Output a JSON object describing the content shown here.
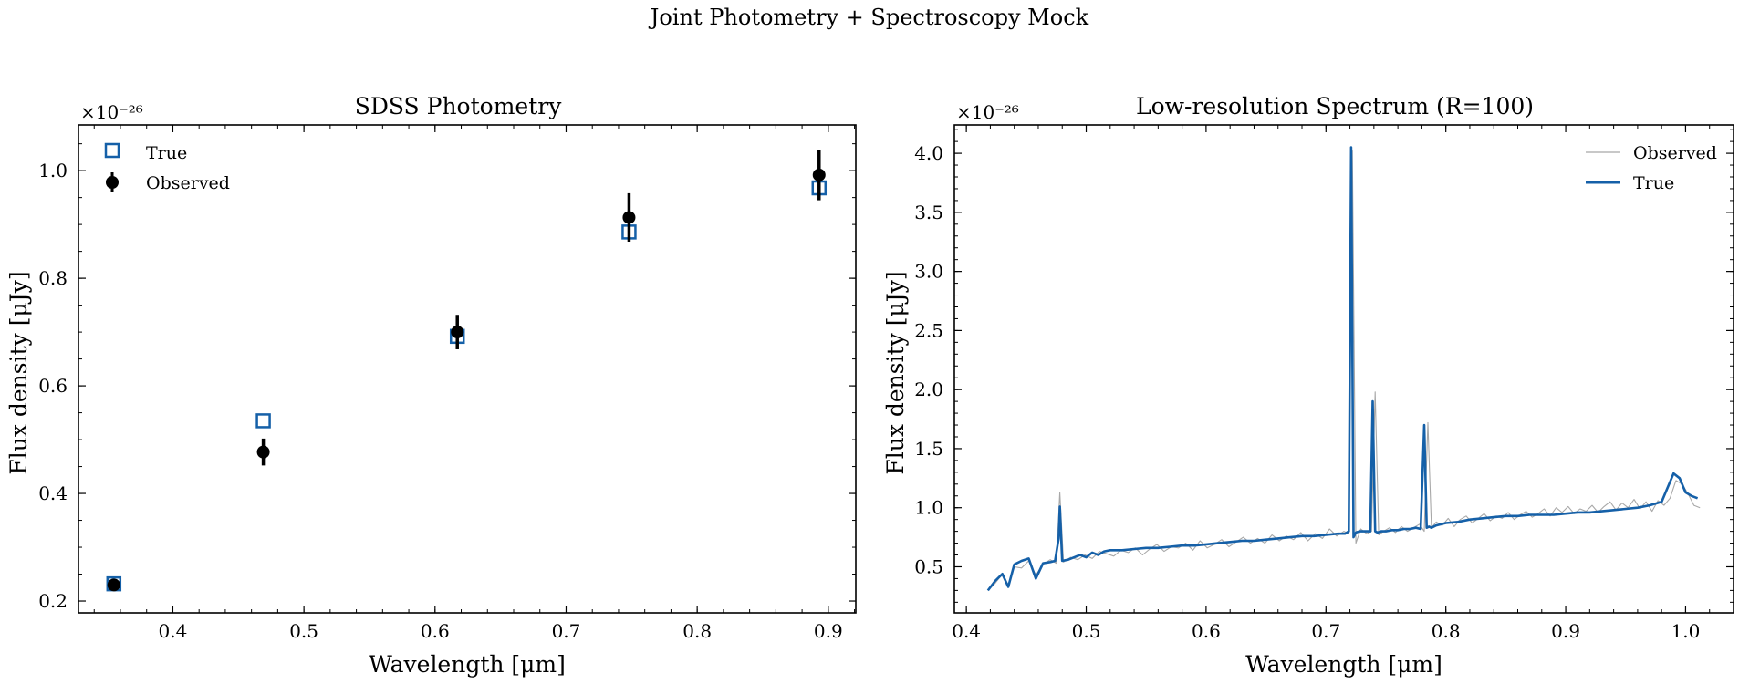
{
  "figure": {
    "suptitle": "Joint Photometry + Spectroscopy Mock"
  },
  "colors": {
    "true": "#1560a8",
    "observed_phot": "#000000",
    "observed_spec": "#a8a8a8"
  },
  "chart_data": [
    {
      "type": "scatter",
      "title": "SDSS Photometry",
      "xlabel": "Wavelength [μm]",
      "ylabel": "Flux density [μJy]",
      "offset_text": "×10⁻²⁶",
      "xlim": [
        0.328,
        0.921
      ],
      "ylim": [
        0.178,
        1.085
      ],
      "xticks": [
        "0.4",
        "0.5",
        "0.6",
        "0.7",
        "0.8",
        "0.9"
      ],
      "yticks": [
        "0.2",
        "0.4",
        "0.6",
        "0.8",
        "1.0"
      ],
      "legend_position": "upper-left",
      "series": [
        {
          "name": "True",
          "marker": "open-square",
          "x": [
            0.355,
            0.469,
            0.617,
            0.748,
            0.893
          ],
          "y": [
            0.232,
            0.535,
            0.692,
            0.886,
            0.968
          ]
        },
        {
          "name": "Observed",
          "marker": "filled-circle-errorbar",
          "x": [
            0.355,
            0.469,
            0.617,
            0.748,
            0.893
          ],
          "y": [
            0.23,
            0.477,
            0.7,
            0.913,
            0.992
          ],
          "yerr": [
            0.007,
            0.025,
            0.032,
            0.045,
            0.047
          ]
        }
      ]
    },
    {
      "type": "line",
      "title": "Low-resolution Spectrum (R=100)",
      "xlabel": "Wavelength [μm]",
      "ylabel": "Flux density [μJy]",
      "offset_text": "×10⁻²⁶",
      "xlim": [
        0.39,
        1.04
      ],
      "ylim": [
        0.11,
        4.24
      ],
      "xticks": [
        "0.4",
        "0.5",
        "0.6",
        "0.7",
        "0.8",
        "0.9",
        "1.0"
      ],
      "yticks": [
        "0.5",
        "1.0",
        "1.5",
        "2.0",
        "2.5",
        "3.0",
        "3.5",
        "4.0"
      ],
      "legend_position": "upper-right",
      "series": [
        {
          "name": "Observed",
          "x": [
            0.418,
            0.424,
            0.43,
            0.435,
            0.44,
            0.446,
            0.452,
            0.458,
            0.464,
            0.47,
            0.475,
            0.478,
            0.481,
            0.487,
            0.493,
            0.499,
            0.505,
            0.511,
            0.517,
            0.523,
            0.529,
            0.535,
            0.541,
            0.547,
            0.553,
            0.559,
            0.565,
            0.571,
            0.577,
            0.583,
            0.589,
            0.595,
            0.601,
            0.607,
            0.613,
            0.619,
            0.625,
            0.631,
            0.637,
            0.643,
            0.649,
            0.655,
            0.661,
            0.667,
            0.673,
            0.679,
            0.685,
            0.691,
            0.697,
            0.703,
            0.709,
            0.715,
            0.719,
            0.722,
            0.725,
            0.729,
            0.734,
            0.738,
            0.741,
            0.744,
            0.748,
            0.753,
            0.758,
            0.763,
            0.768,
            0.773,
            0.778,
            0.782,
            0.785,
            0.788,
            0.792,
            0.797,
            0.802,
            0.807,
            0.812,
            0.817,
            0.822,
            0.827,
            0.832,
            0.837,
            0.842,
            0.847,
            0.852,
            0.857,
            0.862,
            0.867,
            0.872,
            0.877,
            0.882,
            0.887,
            0.892,
            0.897,
            0.902,
            0.907,
            0.912,
            0.917,
            0.922,
            0.927,
            0.932,
            0.937,
            0.942,
            0.947,
            0.952,
            0.957,
            0.962,
            0.967,
            0.972,
            0.977,
            0.982,
            0.987,
            0.992,
            0.997,
            1.002,
            1.007,
            1.012
          ],
          "y": [
            0.3,
            0.36,
            0.44,
            0.34,
            0.5,
            0.49,
            0.55,
            0.43,
            0.52,
            0.56,
            0.53,
            1.13,
            0.54,
            0.58,
            0.56,
            0.6,
            0.57,
            0.63,
            0.61,
            0.59,
            0.64,
            0.62,
            0.66,
            0.6,
            0.65,
            0.69,
            0.63,
            0.67,
            0.66,
            0.7,
            0.64,
            0.72,
            0.66,
            0.69,
            0.73,
            0.67,
            0.71,
            0.75,
            0.7,
            0.74,
            0.7,
            0.77,
            0.72,
            0.76,
            0.73,
            0.79,
            0.72,
            0.78,
            0.74,
            0.82,
            0.76,
            0.8,
            0.78,
            4.02,
            0.7,
            0.82,
            0.78,
            0.8,
            1.98,
            0.77,
            0.8,
            0.83,
            0.79,
            0.84,
            0.8,
            0.83,
            0.86,
            0.8,
            1.72,
            0.83,
            0.88,
            0.85,
            0.91,
            0.84,
            0.9,
            0.93,
            0.87,
            0.91,
            0.95,
            0.89,
            0.93,
            0.91,
            0.96,
            0.9,
            0.94,
            0.97,
            0.92,
            0.95,
            0.99,
            0.93,
            1.0,
            0.96,
            1.01,
            0.95,
            0.99,
            0.97,
            1.02,
            0.96,
            1.01,
            1.05,
            0.98,
            1.04,
            1.0,
            1.07,
            0.99,
            1.05,
            0.97,
            1.06,
            1.02,
            1.08,
            1.23,
            1.2,
            1.12,
            1.02,
            1.0
          ]
        },
        {
          "name": "True",
          "x": [
            0.418,
            0.424,
            0.43,
            0.435,
            0.44,
            0.446,
            0.452,
            0.458,
            0.464,
            0.47,
            0.474,
            0.477,
            0.478,
            0.48,
            0.485,
            0.49,
            0.495,
            0.5,
            0.505,
            0.51,
            0.515,
            0.52,
            0.53,
            0.54,
            0.55,
            0.56,
            0.57,
            0.58,
            0.59,
            0.6,
            0.61,
            0.62,
            0.63,
            0.64,
            0.65,
            0.66,
            0.67,
            0.68,
            0.69,
            0.7,
            0.71,
            0.716,
            0.719,
            0.721,
            0.723,
            0.725,
            0.728,
            0.733,
            0.737,
            0.739,
            0.741,
            0.743,
            0.746,
            0.75,
            0.755,
            0.76,
            0.765,
            0.77,
            0.775,
            0.779,
            0.782,
            0.784,
            0.786,
            0.788,
            0.792,
            0.8,
            0.81,
            0.82,
            0.83,
            0.84,
            0.85,
            0.86,
            0.87,
            0.88,
            0.89,
            0.9,
            0.91,
            0.92,
            0.93,
            0.94,
            0.95,
            0.96,
            0.97,
            0.98,
            0.99,
            0.995,
            1.0,
            1.005,
            1.01
          ],
          "y": [
            0.3,
            0.38,
            0.44,
            0.33,
            0.52,
            0.55,
            0.57,
            0.4,
            0.53,
            0.54,
            0.55,
            0.74,
            1.01,
            0.55,
            0.56,
            0.58,
            0.6,
            0.58,
            0.62,
            0.6,
            0.63,
            0.64,
            0.64,
            0.65,
            0.66,
            0.66,
            0.67,
            0.68,
            0.68,
            0.69,
            0.7,
            0.71,
            0.72,
            0.72,
            0.73,
            0.74,
            0.75,
            0.76,
            0.76,
            0.77,
            0.78,
            0.78,
            0.8,
            4.05,
            0.75,
            0.79,
            0.8,
            0.8,
            0.8,
            1.9,
            0.8,
            0.79,
            0.8,
            0.8,
            0.81,
            0.81,
            0.82,
            0.82,
            0.83,
            0.82,
            1.7,
            0.83,
            0.84,
            0.83,
            0.85,
            0.87,
            0.88,
            0.9,
            0.91,
            0.92,
            0.93,
            0.93,
            0.94,
            0.94,
            0.94,
            0.95,
            0.96,
            0.96,
            0.97,
            0.98,
            0.99,
            1.0,
            1.02,
            1.05,
            1.29,
            1.25,
            1.13,
            1.1,
            1.08
          ]
        }
      ]
    }
  ]
}
